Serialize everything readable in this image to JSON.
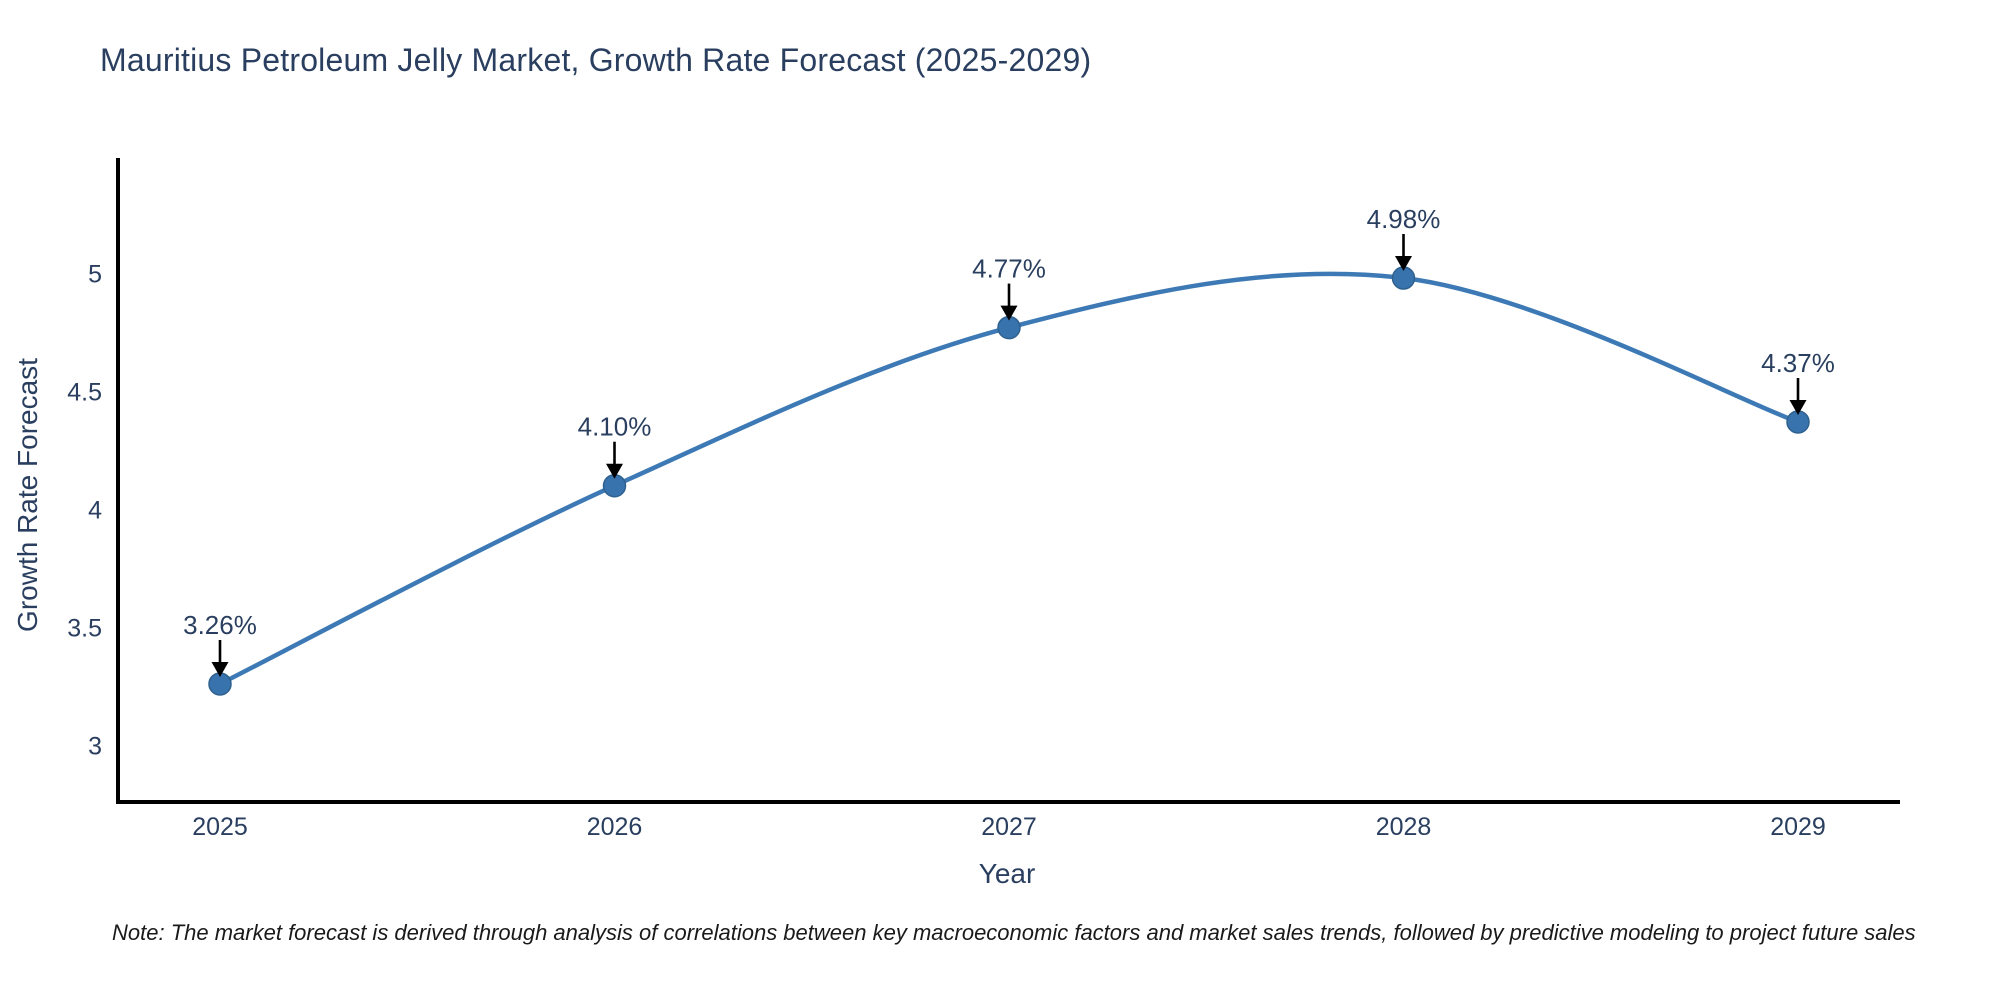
{
  "chart": {
    "title": "Mauritius Petroleum Jelly Market, Growth Rate Forecast (2025-2029)",
    "xlabel": "Year",
    "ylabel": "Growth Rate Forecast",
    "note": "Note: The market forecast is derived through analysis of correlations between key macroeconomic factors and market sales trends, followed by predictive modeling to project future sales"
  },
  "chart_data": {
    "type": "line",
    "title": "Mauritius Petroleum Jelly Market, Growth Rate Forecast (2025-2029)",
    "categories": [
      "2025",
      "2026",
      "2027",
      "2028",
      "2029"
    ],
    "values": [
      3.26,
      4.1,
      4.77,
      4.98,
      4.37
    ],
    "point_labels": [
      "3.26%",
      "4.10%",
      "4.77%",
      "4.98%",
      "4.37%"
    ],
    "xlabel": "Year",
    "ylabel": "Growth Rate Forecast",
    "ylim": [
      2.76,
      5.48
    ],
    "yticks": [
      3,
      3.5,
      4,
      4.5,
      5
    ],
    "line_shape": "spline",
    "grid": false,
    "legend_position": "none",
    "colors": {
      "line": "#3d7ab5",
      "marker": "#3873ae",
      "marker_edge": "#2f618f",
      "axis_line": "#000000",
      "tick_text": "#2a3f5f",
      "annotation_text": "#2a3f5f",
      "annotation_arrow": "#000000",
      "background": "#ffffff"
    }
  }
}
